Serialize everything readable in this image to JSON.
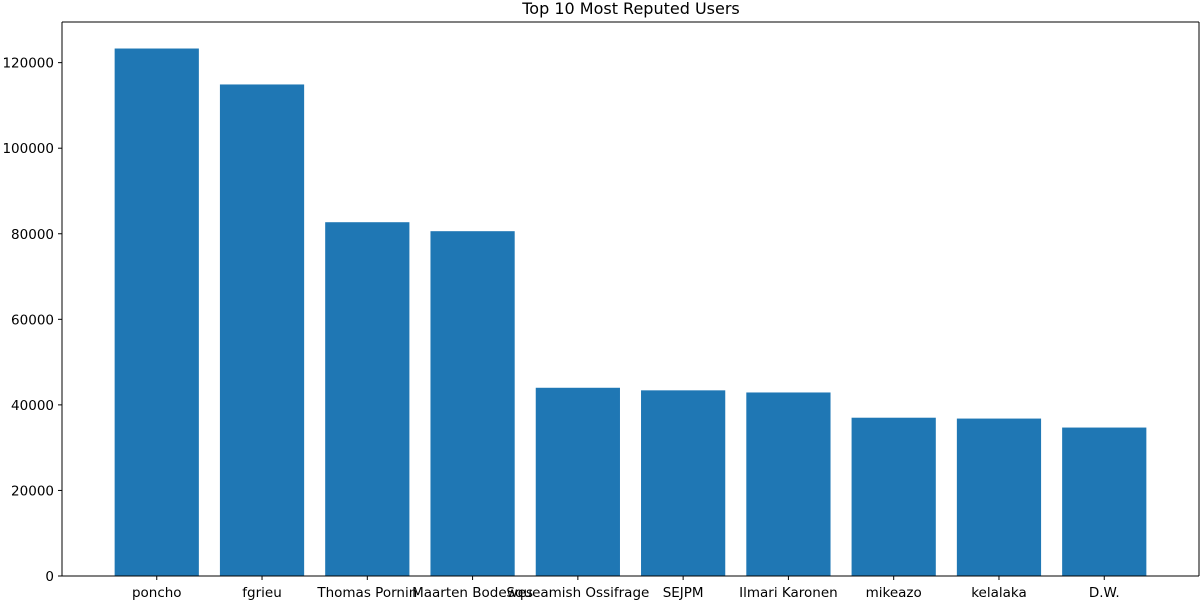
{
  "chart_data": {
    "type": "bar",
    "title": "Top 10 Most Reputed Users",
    "xlabel": "",
    "ylabel": "",
    "categories": [
      "poncho",
      "fgrieu",
      "Thomas Pornin",
      "Maarten Bodewes",
      "Squeamish Ossifrage",
      "SEJPM",
      "Ilmari Karonen",
      "mikeazo",
      "kelalaka",
      "D.W."
    ],
    "values": [
      123300,
      114900,
      82700,
      80600,
      44000,
      43400,
      42900,
      37000,
      36800,
      34700
    ],
    "ylim": [
      0,
      129500
    ],
    "yticks": [
      0,
      20000,
      40000,
      60000,
      80000,
      100000,
      120000
    ],
    "ytick_labels": [
      "0",
      "20000",
      "40000",
      "60000",
      "80000",
      "100000",
      "120000"
    ],
    "grid": false,
    "bar_color": "#1f77b4"
  }
}
